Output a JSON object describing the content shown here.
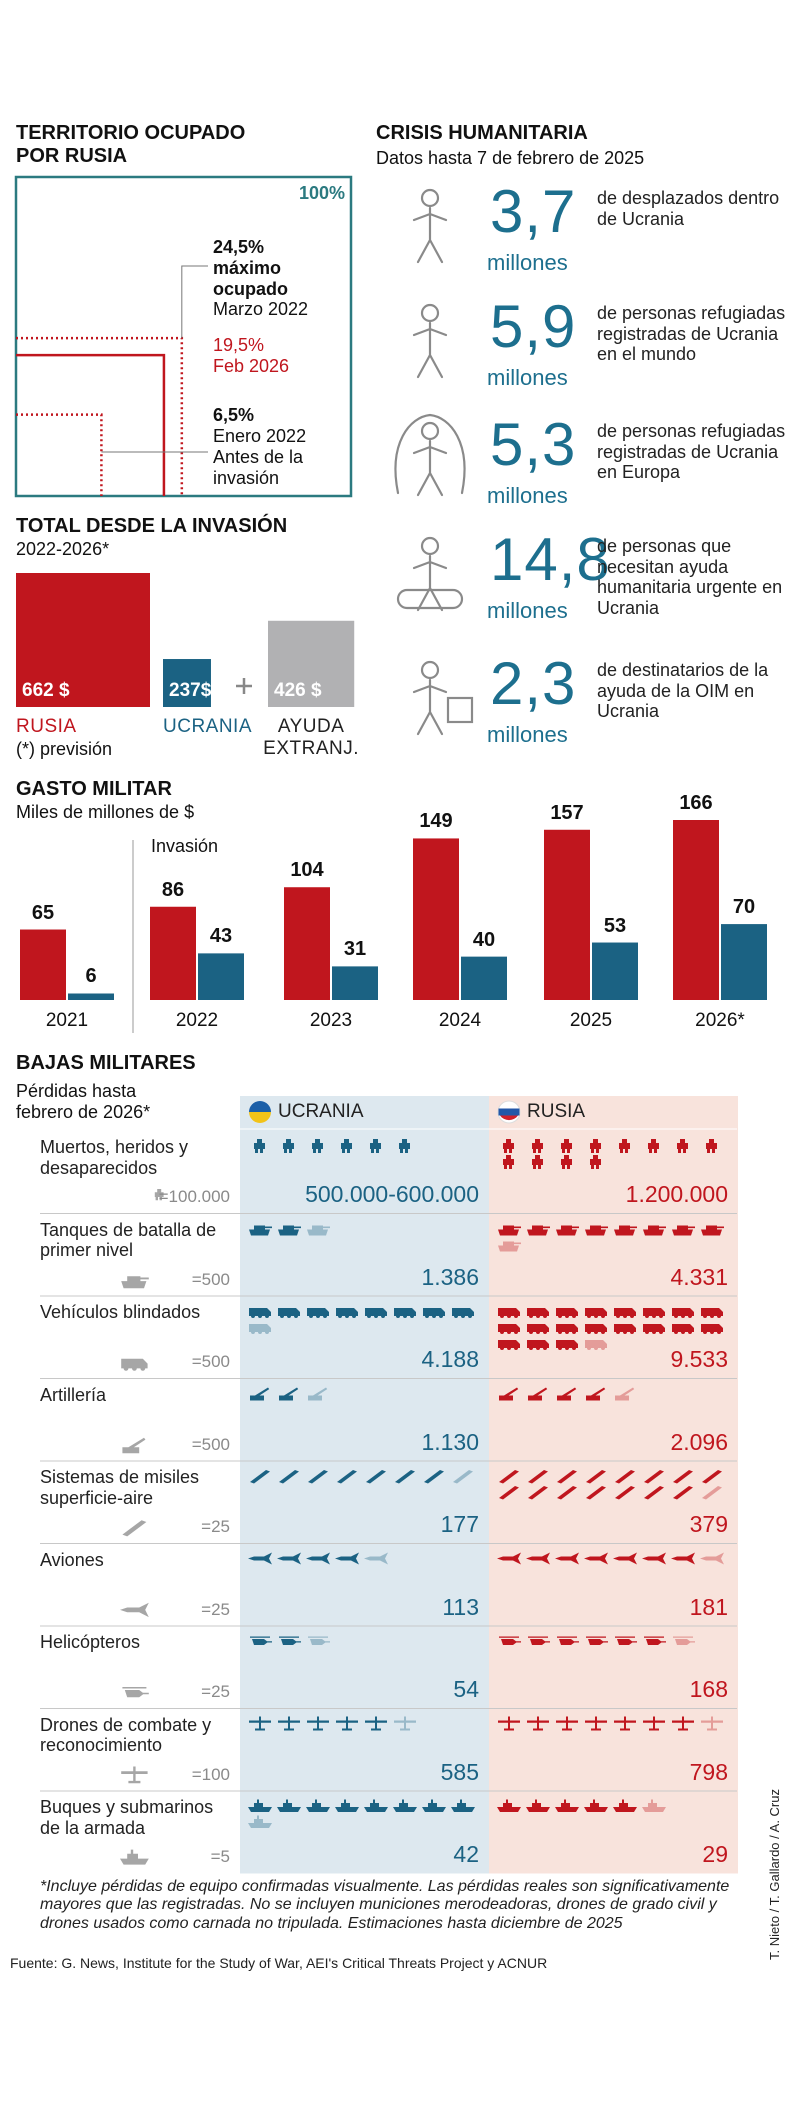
{
  "chart_data": [
    {
      "type": "squares",
      "title": "TERRITORIO OCUPADO POR RUSIA",
      "values": [
        100,
        24.5,
        19.5,
        6.5
      ],
      "value_labels": [
        "100%",
        "24,5%",
        "19,5%",
        "6,5%"
      ],
      "notes": [
        [],
        [
          "máximo ocupado",
          "Marzo 2022"
        ],
        [
          "Feb 2026"
        ],
        [
          "Enero 2022",
          "Antes de la invasión"
        ]
      ],
      "colors": [
        "#2b7a80",
        "#c0161e",
        "#c0161e",
        "#c0161e"
      ],
      "line_styles": [
        "solid",
        "dotted",
        "solid",
        "dotted"
      ],
      "label_colors": [
        "#2b7a80",
        "#111111",
        "#c0161e",
        "#111111"
      ]
    },
    {
      "type": "bar",
      "title": "TOTAL DESDE LA INVASIÓN",
      "subtitle": "2022-2026*",
      "categories": [
        "RUSIA",
        "UCRANIA",
        "AYUDA EXTRANJ."
      ],
      "values": [
        662,
        237,
        426
      ],
      "value_labels": [
        "662 $",
        "237$",
        "426 $"
      ],
      "colors": [
        "#c0161e",
        "#1b6283",
        "#b1b1b3"
      ],
      "label_colors": [
        "#c0161e",
        "#1b6283",
        "#222222"
      ],
      "note": "(*) previsión"
    },
    {
      "type": "grouped-bar",
      "title": "GASTO MILITAR",
      "subtitle": "Miles de millones de $",
      "categories": [
        "2021",
        "2022",
        "2023",
        "2024",
        "2025",
        "2026*"
      ],
      "series": [
        {
          "color": "#c0161e",
          "values": [
            65,
            86,
            104,
            149,
            157,
            166
          ]
        },
        {
          "color": "#1b6283",
          "values": [
            6,
            43,
            31,
            40,
            53,
            70
          ]
        }
      ],
      "annotation": "Invasión"
    }
  ],
  "humanitarian": {
    "title": "CRISIS HUMANITARIA",
    "subtitle": "Datos hasta 7 de febrero de 2025",
    "items": [
      {
        "value": "3,7",
        "unit": "millones",
        "text": "de desplazados dentro de Ucrania"
      },
      {
        "value": "5,9",
        "unit": "millones",
        "text": "de personas refugiadas registradas de Ucrania en el mundo"
      },
      {
        "value": "5,3",
        "unit": "millones",
        "text": "de personas refugiadas registradas de Ucrania en Europa"
      },
      {
        "value": "14,8",
        "unit": "millones",
        "text": "de personas que necesitan ayuda humanitaria urgente en Ucrania"
      },
      {
        "value": "2,3",
        "unit": "millones",
        "text": "de destinatarios de la ayuda de la OIM en Ucrania"
      }
    ]
  },
  "losses": {
    "title": "BAJAS MILITARES",
    "subtitle": "Pérdidas hasta febrero de 2026*",
    "columns": [
      {
        "name": "UCRANIA",
        "color": "#1b6283",
        "background": "#dde8ef"
      },
      {
        "name": "RUSIA",
        "color": "#c0161e",
        "background": "#f8e3dc"
      }
    ],
    "rows": [
      {
        "label": "Muertos, heridos y desaparecidos",
        "unit": {
          "value": 100000,
          "label": "=100.000"
        },
        "losses": [
          {
            "values": [
              500000,
              600000
            ],
            "label": "500.000-600.000"
          },
          {
            "values": [
              1200000
            ],
            "label": "1.200.000"
          }
        ]
      },
      {
        "label": "Tanques de batalla de primer nivel",
        "unit": {
          "value": 500,
          "label": "=500"
        },
        "losses": [
          {
            "values": [
              1386
            ],
            "label": "1.386"
          },
          {
            "values": [
              4331
            ],
            "label": "4.331"
          }
        ]
      },
      {
        "label": "Vehículos blindados",
        "unit": {
          "value": 500,
          "label": "=500"
        },
        "losses": [
          {
            "values": [
              4188
            ],
            "label": "4.188"
          },
          {
            "values": [
              9533
            ],
            "label": "9.533"
          }
        ]
      },
      {
        "label": "Artillería",
        "unit": {
          "value": 500,
          "label": "=500"
        },
        "losses": [
          {
            "values": [
              1130
            ],
            "label": "1.130"
          },
          {
            "values": [
              2096
            ],
            "label": "2.096"
          }
        ]
      },
      {
        "label": "Sistemas de misiles superficie-aire",
        "unit": {
          "value": 25,
          "label": "=25"
        },
        "losses": [
          {
            "values": [
              177
            ],
            "label": "177"
          },
          {
            "values": [
              379
            ],
            "label": "379"
          }
        ]
      },
      {
        "label": "Aviones",
        "unit": {
          "value": 25,
          "label": "=25"
        },
        "losses": [
          {
            "values": [
              113
            ],
            "label": "113"
          },
          {
            "values": [
              181
            ],
            "label": "181"
          }
        ]
      },
      {
        "label": "Helicópteros",
        "unit": {
          "value": 25,
          "label": "=25"
        },
        "losses": [
          {
            "values": [
              54
            ],
            "label": "54"
          },
          {
            "values": [
              168
            ],
            "label": "168"
          }
        ]
      },
      {
        "label": "Drones de combate y reconocimiento",
        "unit": {
          "value": 100,
          "label": "=100"
        },
        "losses": [
          {
            "values": [
              585
            ],
            "label": "585"
          },
          {
            "values": [
              798
            ],
            "label": "798"
          }
        ]
      },
      {
        "label": "Buques y submarinos de la armada",
        "unit": {
          "value": 5,
          "label": "=5"
        },
        "losses": [
          {
            "values": [
              42
            ],
            "label": "42"
          },
          {
            "values": [
              29
            ],
            "label": "29"
          }
        ]
      }
    ]
  },
  "footnote": "*Incluye pérdidas de equipo confirmadas visualmente. Las pérdidas reales son significativamente mayores que las registradas. No se incluyen municiones merodeadoras, drones de grado civil y drones usados como carnada no tripulada. Estimaciones hasta diciembre de 2025",
  "source": "Fuente: G. News, Institute for the Study of War, AEI's Critical Threats Project y ACNUR",
  "credit": "T. Nieto / T. Gallardo / A. Cruz"
}
